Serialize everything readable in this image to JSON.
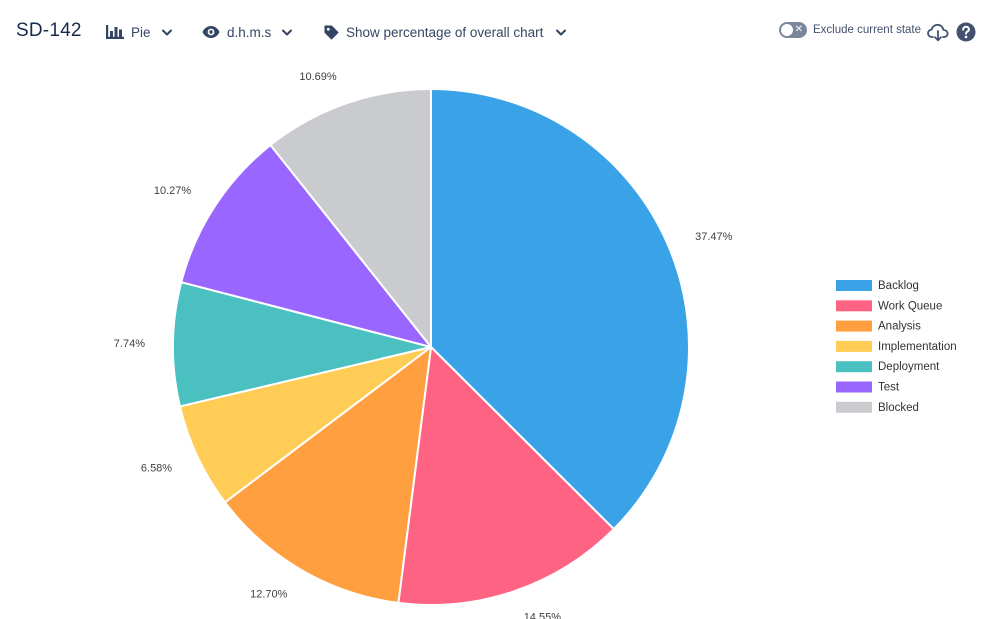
{
  "toolbar": {
    "issue_key": "SD-142",
    "chart_type_label": "Pie",
    "time_format_label": "d.h.m.s",
    "percentage_mode_label": "Show percentage of overall chart",
    "exclude_label": "Exclude current state",
    "exclude_toggle_symbol": "✕"
  },
  "chart_data": {
    "type": "pie",
    "title": "",
    "categories": [
      "Backlog",
      "Work Queue",
      "Analysis",
      "Implementation",
      "Deployment",
      "Test",
      "Blocked"
    ],
    "values": [
      37.47,
      14.55,
      12.7,
      6.58,
      7.74,
      10.27,
      10.69
    ],
    "labels": [
      "37.47%",
      "14.55%",
      "12.70%",
      "6.58%",
      "7.74%",
      "10.27%",
      "10.69%"
    ],
    "colors": [
      "#3aa3e8",
      "#ff6384",
      "#ff9f40",
      "#ffcd56",
      "#4bc0c0",
      "#9966ff",
      "#c9cbcf"
    ],
    "start_angle_deg": 0,
    "direction": "clockwise",
    "legend_position": "right"
  }
}
